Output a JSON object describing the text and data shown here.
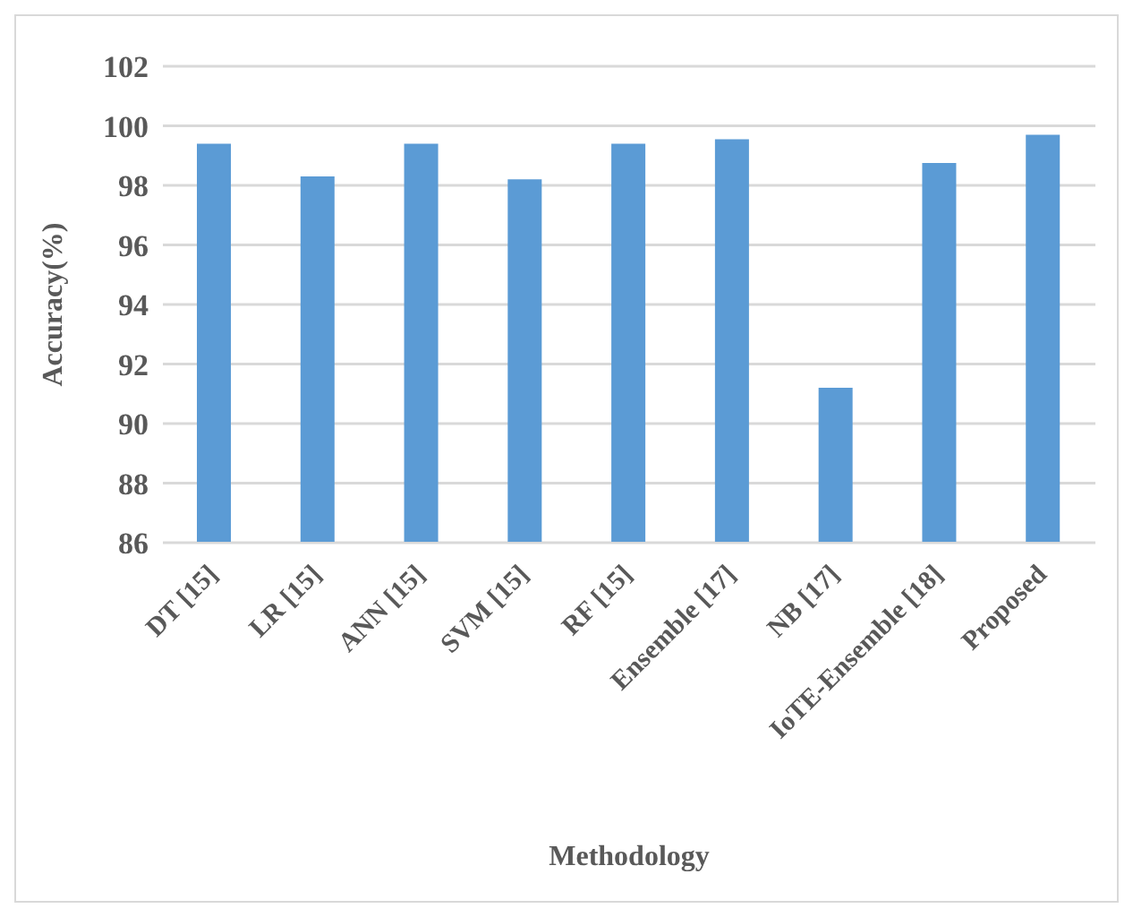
{
  "chart_data": {
    "type": "bar",
    "xlabel": "Methodology",
    "ylabel": "Accuracy(%)",
    "categories": [
      "DT [15]",
      "LR [15]",
      "ANN [15]",
      "SVM [15]",
      "RF [15]",
      "Ensemble [17]",
      "NB [17]",
      "IoTE-Ensemble [18]",
      "Proposed"
    ],
    "values": [
      99.4,
      98.3,
      99.4,
      98.2,
      99.4,
      99.55,
      91.2,
      98.75,
      99.7
    ],
    "color": "#5b9bd5",
    "ylim": [
      86,
      102
    ],
    "yticks": [
      86,
      88,
      90,
      92,
      94,
      96,
      98,
      100,
      102
    ],
    "grid": "y"
  }
}
